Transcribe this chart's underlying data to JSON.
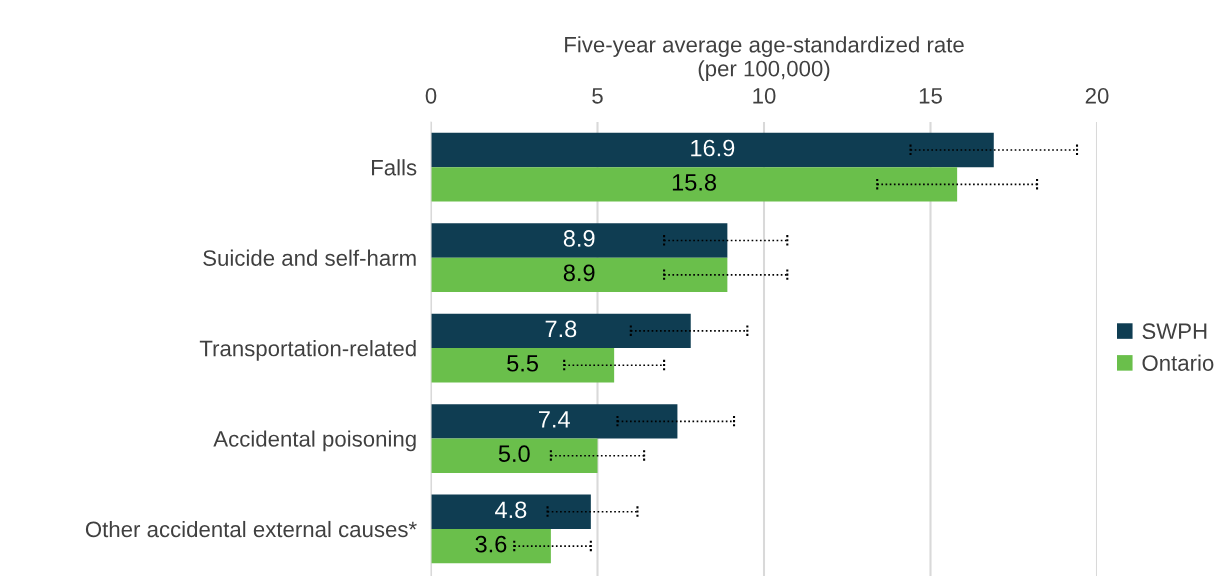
{
  "chart_data": {
    "type": "bar",
    "orientation": "horizontal",
    "xlabel": "Five-year average age-standardized rate\n(per 100,000)",
    "categories": [
      "Falls",
      "Suicide and self-harm",
      "Transportation-related",
      "Accidental poisoning",
      "Other accidental external causes*"
    ],
    "series": [
      {
        "name": "SWPH",
        "color": "#0f3d52",
        "values": [
          16.9,
          8.9,
          7.8,
          7.4,
          4.8
        ],
        "value_labels": [
          "16.9",
          "8.9",
          "7.8",
          "7.4",
          "4.8"
        ],
        "errors": [
          [
            14.4,
            19.4
          ],
          [
            7.0,
            10.7
          ],
          [
            6.0,
            9.5
          ],
          [
            5.6,
            9.1
          ],
          [
            3.5,
            6.2
          ]
        ]
      },
      {
        "name": "Ontario",
        "color": "#6abf4b",
        "values": [
          15.8,
          8.9,
          5.5,
          5.0,
          3.6
        ],
        "value_labels": [
          "15.8",
          "8.9",
          "5.5",
          "5.0",
          "3.6"
        ],
        "errors": [
          [
            13.4,
            18.2
          ],
          [
            7.0,
            10.7
          ],
          [
            4.0,
            7.0
          ],
          [
            3.6,
            6.4
          ],
          [
            2.5,
            4.8
          ]
        ]
      }
    ],
    "xlim": [
      0,
      20
    ],
    "xticks": [
      0,
      5,
      10,
      15,
      20
    ],
    "grid": "x",
    "legend": "right"
  }
}
